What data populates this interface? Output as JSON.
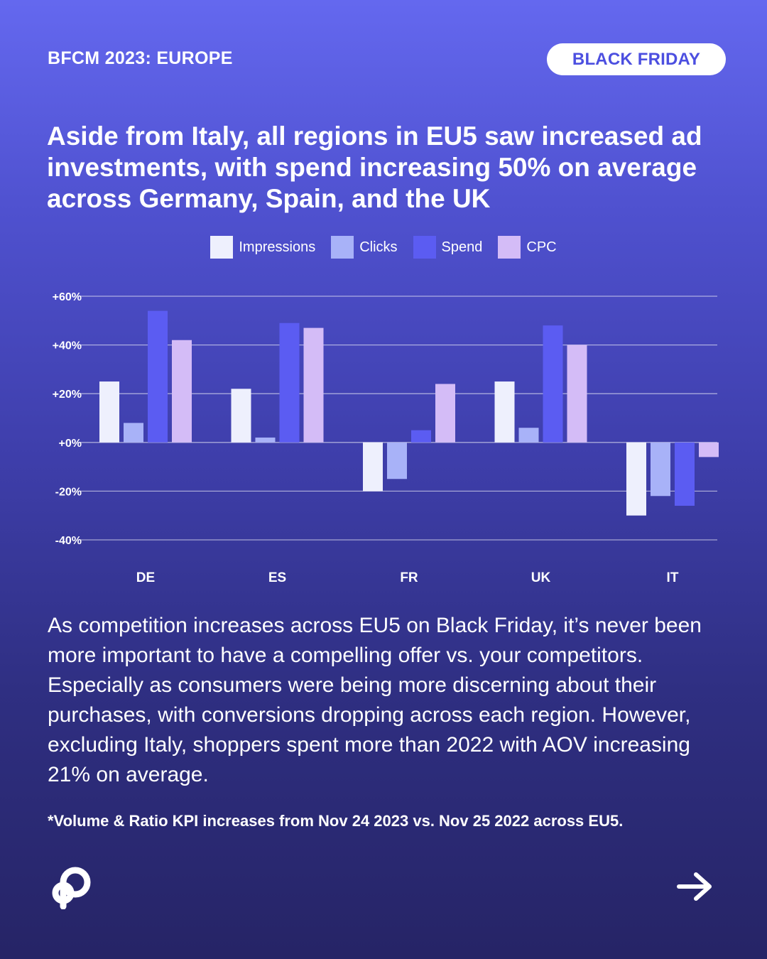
{
  "header": {
    "kicker": "BFCM 2023: EUROPE",
    "badge": "BLACK FRIDAY"
  },
  "headline": "Aside from Italy, all regions in EU5 saw increased ad investments, with spend increasing 50% on average across Germany, Spain, and the UK",
  "body": "As competition increases across EU5 on Black Friday, it’s never been more important to have a compelling offer vs. your competitors. Especially as consumers were being more discerning about their purchases, with conversions dropping across each region. However, excluding Italy, shoppers spent more than 2022 with AOV increasing 21% on average.",
  "footnote": "*Volume & Ratio KPI increases from Nov 24 2023 vs. Nov 25 2022 across EU5.",
  "colors": {
    "badge_text": "#4c4fe0",
    "impressions": "#eef0fd",
    "clicks": "#a8b2f8",
    "spend": "#5b5cf2",
    "cpc": "#d4bcf7"
  },
  "icons": [
    "brand-logo-icon",
    "arrow-right-icon"
  ],
  "chart_data": {
    "type": "bar",
    "categories": [
      "DE",
      "ES",
      "FR",
      "UK",
      "IT"
    ],
    "series": [
      {
        "name": "Impressions",
        "color": "#eef0fd",
        "values": [
          25,
          22,
          -20,
          25,
          -30
        ]
      },
      {
        "name": "Clicks",
        "color": "#a8b2f8",
        "values": [
          8,
          2,
          -15,
          6,
          -22
        ]
      },
      {
        "name": "Spend",
        "color": "#5b5cf2",
        "values": [
          54,
          49,
          5,
          48,
          -26
        ]
      },
      {
        "name": "CPC",
        "color": "#d4bcf7",
        "values": [
          42,
          47,
          24,
          40,
          -6
        ]
      }
    ],
    "yticks": [
      60,
      40,
      20,
      0,
      -20,
      -40
    ],
    "ytick_labels": [
      "+60%",
      "+40%",
      "+20%",
      "+0%",
      "-20%",
      "-40%"
    ],
    "ylim": [
      -40,
      60
    ],
    "grid": true,
    "legend": "top-center"
  }
}
